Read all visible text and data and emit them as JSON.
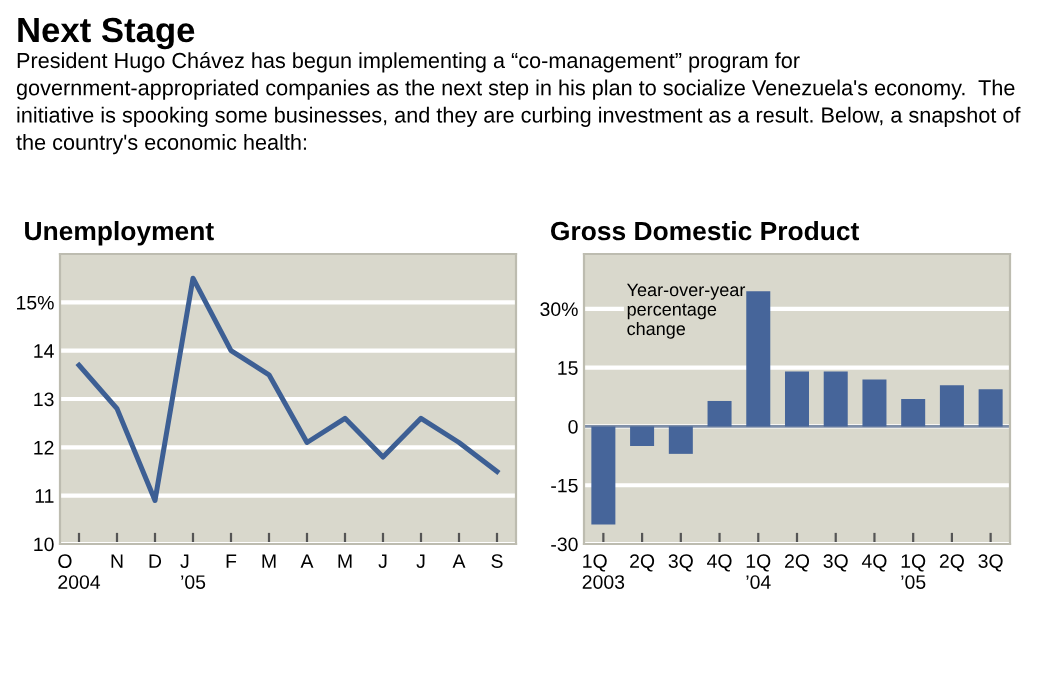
{
  "chart_data": [
    {
      "type": "other",
      "title": "Next Stage",
      "subtitle": "President Hugo Chávez has begun implementing a “co-management” program for government-appropriated companies as the next step in his plan to socialize Venezuela's economy.  The initiative is spooking some businesses, and they are curbing investment as a result. Below, a snapshot of the country's economic health:"
    },
    {
      "type": "line",
      "title": "Unemployment",
      "categories": [
        "O\n2004",
        "N",
        "D",
        "J\n’05",
        "F",
        "M",
        "A",
        "M",
        "J",
        "J",
        "A",
        "S"
      ],
      "series": [
        {
          "color": "#3d5f94",
          "values": [
            13.7,
            12.8,
            10.9,
            15.5,
            14.0,
            13.5,
            12.1,
            12.6,
            11.8,
            12.6,
            12.1,
            11.5
          ]
        }
      ],
      "ylim": [
        10,
        16
      ],
      "yticks": [
        10,
        11,
        12,
        13,
        14,
        {
          "value": 15,
          "label": "15%"
        }
      ],
      "grid": "y",
      "marker": "none",
      "line_style": "solid"
    },
    {
      "type": "bar",
      "title": "Gross Domestic Product",
      "categories": [
        "1Q\n2003",
        "2Q",
        "3Q",
        "4Q",
        "1Q\n’04",
        "2Q",
        "3Q",
        "4Q",
        "1Q\n’05",
        "2Q",
        "3Q"
      ],
      "series": [
        {
          "color": "#46659a",
          "values": [
            -25,
            -5,
            -7,
            6.5,
            34.5,
            14,
            14,
            12,
            7,
            10.5,
            9.5
          ]
        }
      ],
      "ylim": [
        -30,
        44
      ],
      "yticks": [
        -30,
        -15,
        0,
        15,
        {
          "value": 30,
          "label": "30%"
        }
      ],
      "grid": "y",
      "ref_lines": [
        {
          "axis": "y",
          "value": 0,
          "color": "#7f8fa8"
        }
      ],
      "annotations": [
        "Year-over-year\npercentage\nchange"
      ]
    }
  ]
}
